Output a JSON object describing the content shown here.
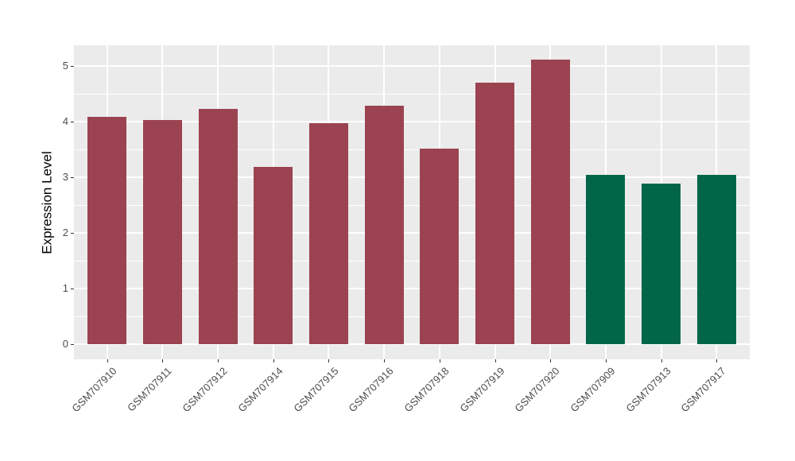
{
  "chart_data": {
    "type": "bar",
    "title": "",
    "xlabel": "",
    "ylabel": "Expression Level",
    "categories": [
      "GSM707910",
      "GSM707911",
      "GSM707912",
      "GSM707914",
      "GSM707915",
      "GSM707916",
      "GSM707918",
      "GSM707919",
      "GSM707920",
      "GSM707909",
      "GSM707913",
      "GSM707917"
    ],
    "values": [
      4.09,
      4.03,
      4.23,
      3.18,
      3.97,
      4.29,
      3.51,
      4.7,
      5.11,
      3.04,
      2.88,
      3.04
    ],
    "group_index": [
      0,
      0,
      0,
      0,
      0,
      0,
      0,
      0,
      0,
      1,
      1,
      1
    ],
    "yticks": [
      0,
      1,
      2,
      3,
      4,
      5
    ],
    "ylim": [
      0,
      5.37
    ],
    "grid": "white major and minor horizontal lines, vertical major lines at each category",
    "legend_position": "none"
  },
  "style": {
    "figure_background": "#FFFFFF",
    "panel_background": "#EBEBEB",
    "grid_color": "#FFFFFF",
    "bar_palette": [
      "#9B4350",
      "#006647"
    ],
    "axis_text_color": "#4D4D4D",
    "axis_title_color": "#000000",
    "tick_mark_color": "#333333"
  }
}
